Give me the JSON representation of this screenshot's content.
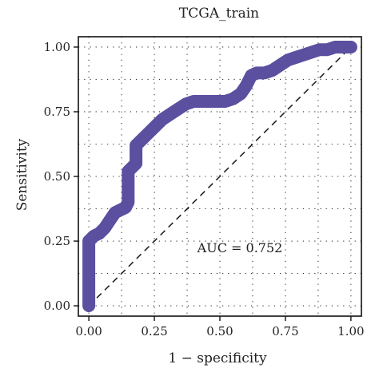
{
  "chart_data": {
    "type": "line",
    "title": "TCGA_train",
    "xlabel": "1 − specificity",
    "ylabel": "Sensitivity",
    "xlim": [
      -0.04,
      1.04
    ],
    "ylim": [
      -0.04,
      1.04
    ],
    "xticks": [
      0.0,
      0.25,
      0.5,
      0.75,
      1.0
    ],
    "yticks": [
      0.0,
      0.25,
      0.5,
      0.75,
      1.0
    ],
    "xtick_labels": [
      "0.00",
      "0.25",
      "0.50",
      "0.75",
      "1.00"
    ],
    "ytick_labels": [
      "0.00",
      "0.25",
      "0.50",
      "0.75",
      "1.00"
    ],
    "grid": "dotted",
    "annotation": "AUC = 0.752",
    "series": [
      {
        "color": "#5b4fa0",
        "x": [
          0.0,
          0.0,
          0.0,
          0.02,
          0.04,
          0.06,
          0.08,
          0.1,
          0.12,
          0.14,
          0.15,
          0.15,
          0.18,
          0.18,
          0.2,
          0.22,
          0.25,
          0.28,
          0.31,
          0.34,
          0.37,
          0.4,
          0.43,
          0.46,
          0.49,
          0.52,
          0.55,
          0.58,
          0.6,
          0.62,
          0.64,
          0.67,
          0.7,
          0.73,
          0.76,
          0.79,
          0.82,
          0.85,
          0.88,
          0.91,
          0.94,
          0.97,
          1.0
        ],
        "y": [
          0.0,
          0.1,
          0.25,
          0.27,
          0.28,
          0.3,
          0.33,
          0.36,
          0.37,
          0.38,
          0.4,
          0.52,
          0.55,
          0.62,
          0.64,
          0.66,
          0.69,
          0.72,
          0.74,
          0.76,
          0.78,
          0.79,
          0.79,
          0.79,
          0.79,
          0.79,
          0.8,
          0.82,
          0.85,
          0.89,
          0.9,
          0.9,
          0.91,
          0.93,
          0.95,
          0.96,
          0.97,
          0.98,
          0.99,
          0.99,
          1.0,
          1.0,
          1.0
        ]
      }
    ]
  }
}
